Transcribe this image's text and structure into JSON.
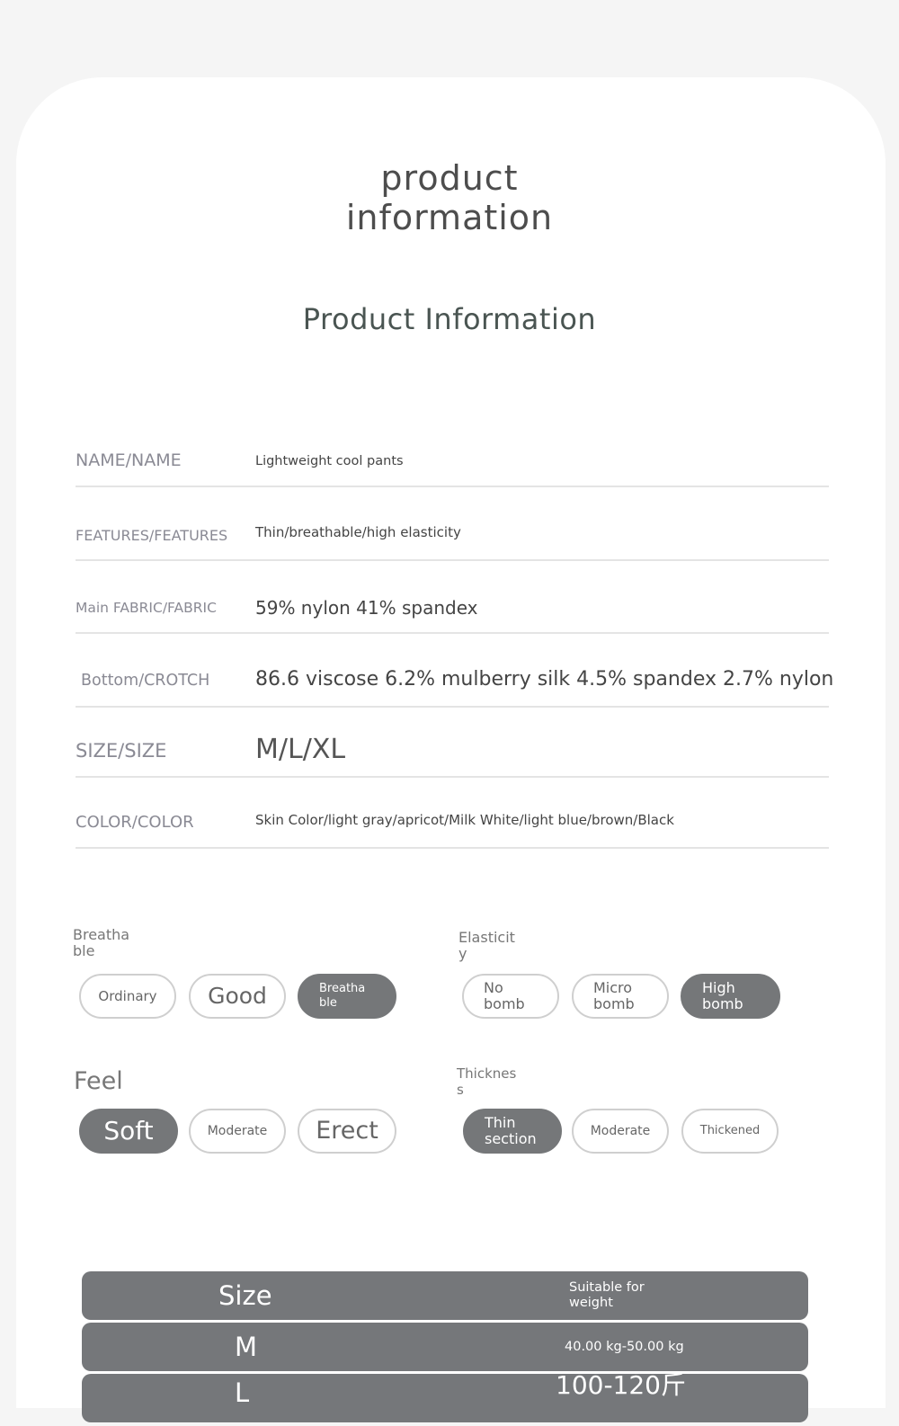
{
  "hero": {
    "line1": "product",
    "line2": "information"
  },
  "section_title": "Product Information",
  "info_rows": [
    {
      "label": "NAME/NAME",
      "value": "Lightweight cool pants"
    },
    {
      "label": "FEATURES/FEATURES",
      "value": "Thin/breathable/high elasticity"
    },
    {
      "label": "Main FABRIC/FABRIC",
      "value": "59% nylon 41% spandex"
    },
    {
      "label": "Bottom/CROTCH",
      "value": "86.6 viscose 6.2% mulberry silk 4.5% spandex 2.7% nylon"
    },
    {
      "label": "SIZE/SIZE",
      "value": "M/L/XL"
    },
    {
      "label": "COLOR/COLOR",
      "value": "Skin Color/light gray/apricot/Milk White/light blue/brown/Black"
    }
  ],
  "attributes": {
    "breathable": {
      "title": "Breatha\nble",
      "options": [
        "Ordinary",
        "Good",
        "Breatha\nble"
      ],
      "selected": 2
    },
    "elasticity": {
      "title": "Elasticit\ny",
      "options": [
        "No\nbomb",
        "Micro\nbomb",
        "High\nbomb"
      ],
      "selected": 2
    },
    "feel": {
      "title": "Feel",
      "options": [
        "Soft",
        "Moderate",
        "Erect"
      ],
      "selected": 0
    },
    "thickness": {
      "title": "Thicknes\ns",
      "options": [
        "Thin\nsection",
        "Moderate",
        "Thickened"
      ],
      "selected": 0
    }
  },
  "size_table": {
    "header": {
      "size": "Size",
      "weight": "Suitable for\nweight"
    },
    "rows": [
      {
        "size": "M",
        "weight": "40.00 kg-50.00 kg"
      },
      {
        "size": "L",
        "weight": "100-120斤"
      }
    ]
  },
  "colors": {
    "selected_pill": "#757779",
    "table_row": "#75777a"
  }
}
